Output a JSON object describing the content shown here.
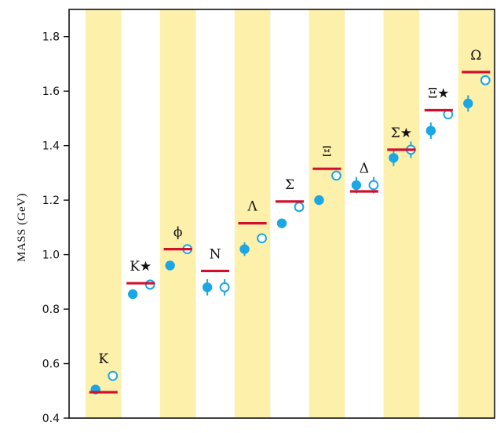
{
  "chart_data": {
    "type": "scatter",
    "ylabel": "MASS (GeV)",
    "ylim": [
      0.4,
      1.9
    ],
    "yticks": [
      "0.4",
      "0.6",
      "0.8",
      "1.0",
      "1.2",
      "1.4",
      "1.6",
      "1.8"
    ],
    "categories": [
      "K",
      "K★",
      "ϕ",
      "N",
      "Λ",
      "Σ",
      "Ξ",
      "Δ",
      "Σ★",
      "Ξ★",
      "Ω"
    ],
    "shaded_categories": [
      true,
      false,
      true,
      false,
      true,
      false,
      true,
      false,
      true,
      false,
      true
    ],
    "series": [
      {
        "marker": "filled-circle",
        "values": [
          0.505,
          0.855,
          0.96,
          0.88,
          1.02,
          1.115,
          1.2,
          1.255,
          1.355,
          1.455,
          1.555
        ],
        "errors": [
          0.005,
          0.005,
          0.005,
          0.03,
          0.025,
          0.005,
          0.005,
          0.03,
          0.03,
          0.03,
          0.03
        ]
      },
      {
        "marker": "open-circle",
        "values": [
          0.555,
          0.89,
          1.02,
          0.88,
          1.06,
          1.175,
          1.29,
          1.255,
          1.385,
          1.515,
          1.64
        ],
        "errors": [
          0.005,
          0.005,
          0.005,
          0.03,
          0.005,
          0.005,
          0.005,
          0.03,
          0.03,
          0.005,
          0.005
        ]
      },
      {
        "marker": "horizontal-bar",
        "values": [
          0.495,
          0.895,
          1.02,
          0.94,
          1.115,
          1.195,
          1.315,
          1.232,
          1.385,
          1.53,
          1.67
        ]
      }
    ],
    "colors": {
      "band": "#fcf0ab",
      "point": "#1aa7e4",
      "bar": "#d0102c",
      "axis": "#111111"
    }
  }
}
